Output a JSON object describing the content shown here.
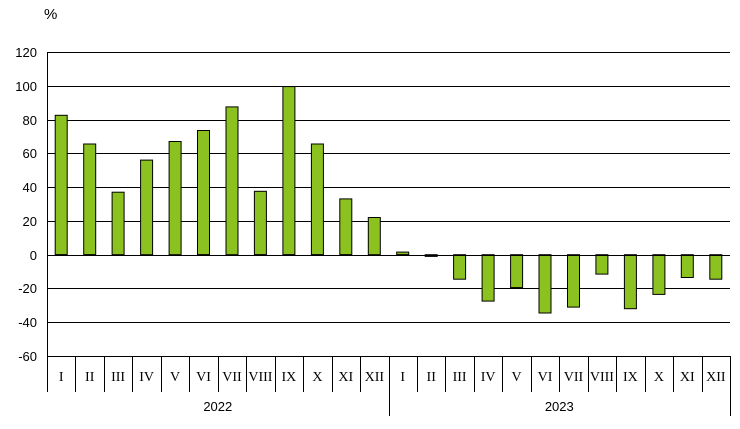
{
  "chart_data": {
    "type": "bar",
    "ylabel": "%",
    "ylim": [
      -60,
      120
    ],
    "yticks": [
      120,
      100,
      80,
      60,
      40,
      20,
      0,
      -20,
      -40,
      -60
    ],
    "grid": true,
    "bar_color": "#8cc220",
    "bar_outline": "#000000",
    "groups": [
      {
        "label": "2022",
        "categories": [
          "I",
          "II",
          "III",
          "IV",
          "V",
          "VI",
          "VII",
          "VIII",
          "IX",
          "X",
          "XI",
          "XII"
        ],
        "values": [
          82.5,
          65.5,
          37,
          56,
          67,
          73.5,
          87.5,
          37.5,
          99.5,
          65.5,
          33,
          22
        ]
      },
      {
        "label": "2023",
        "categories": [
          "I",
          "II",
          "III",
          "IV",
          "V",
          "VI",
          "VII",
          "VIII",
          "IX",
          "X",
          "XI",
          "XII"
        ],
        "values": [
          1.5,
          -1,
          -14.5,
          -27.5,
          -19.5,
          -34.5,
          -31,
          -11.5,
          -32,
          -23.5,
          -13.5,
          -14.5
        ]
      }
    ]
  }
}
